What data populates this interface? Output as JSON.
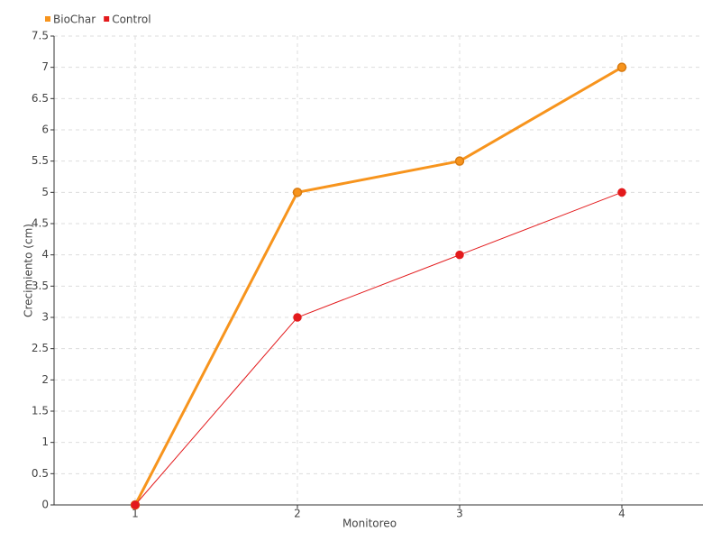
{
  "chart_data": {
    "type": "line",
    "x_label": "Monitoreo",
    "y_label": "Crecimiento (cm)",
    "x": [
      1,
      2,
      3,
      4
    ],
    "xlim": [
      0.5,
      4.5
    ],
    "xticks": [
      1,
      2,
      3,
      4
    ],
    "ylim": [
      0,
      7.5
    ],
    "yticks": [
      0,
      0.5,
      1,
      1.5,
      2,
      2.5,
      3,
      3.5,
      4,
      4.5,
      5,
      5.5,
      6,
      6.5,
      7,
      7.5
    ],
    "grid": true,
    "legend": "top-left",
    "series": [
      {
        "name": "BioChar",
        "color": "#f7941d",
        "values": [
          0,
          5,
          5.5,
          7
        ]
      },
      {
        "name": "Control",
        "color": "#e31a1c",
        "values": [
          0,
          3,
          4,
          5
        ]
      }
    ]
  }
}
